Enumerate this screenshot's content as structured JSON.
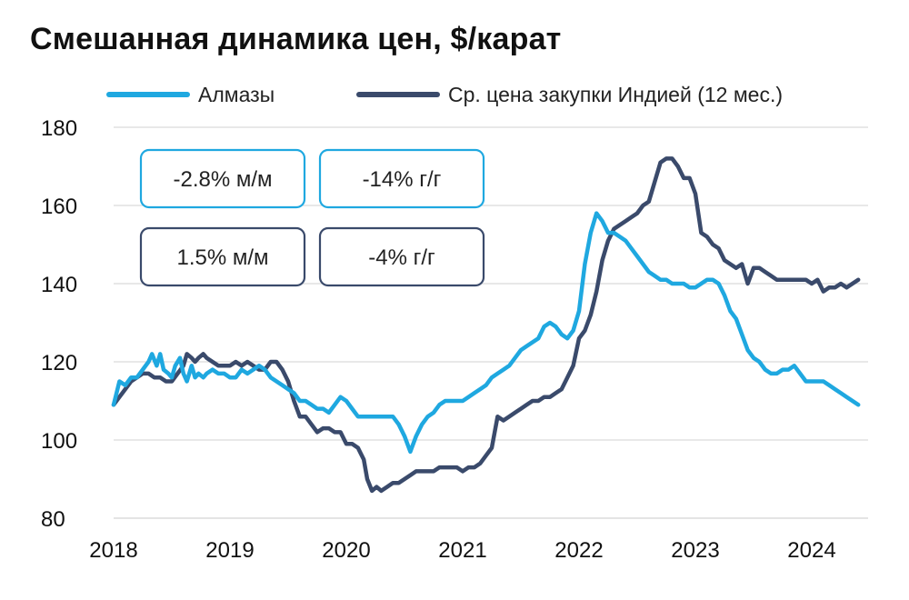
{
  "title": "Смешанная динамика цен, $/карат",
  "chart_data": {
    "type": "line",
    "title": "Смешанная динамика цен, $/карат",
    "xlabel": "",
    "ylabel": "",
    "ylim": [
      80,
      180
    ],
    "yticks": [
      80,
      100,
      120,
      140,
      160,
      180
    ],
    "xlim": [
      2018,
      2024.6
    ],
    "xticks": [
      "2018",
      "2019",
      "2020",
      "2021",
      "2022",
      "2023",
      "2024"
    ],
    "grid": "horizontal",
    "legend_position": "top",
    "series": [
      {
        "name": "Алмазы",
        "color": "#1fa8e0",
        "points": [
          [
            2018.0,
            109
          ],
          [
            2018.05,
            115
          ],
          [
            2018.1,
            114
          ],
          [
            2018.15,
            116
          ],
          [
            2018.2,
            116
          ],
          [
            2018.25,
            118
          ],
          [
            2018.3,
            120
          ],
          [
            2018.33,
            122
          ],
          [
            2018.37,
            119
          ],
          [
            2018.4,
            122
          ],
          [
            2018.43,
            118
          ],
          [
            2018.47,
            117
          ],
          [
            2018.5,
            116
          ],
          [
            2018.53,
            119
          ],
          [
            2018.57,
            121
          ],
          [
            2018.6,
            117
          ],
          [
            2018.63,
            115
          ],
          [
            2018.67,
            119
          ],
          [
            2018.7,
            116
          ],
          [
            2018.73,
            117
          ],
          [
            2018.77,
            116
          ],
          [
            2018.8,
            117
          ],
          [
            2018.85,
            118
          ],
          [
            2018.9,
            117
          ],
          [
            2018.95,
            117
          ],
          [
            2019.0,
            116
          ],
          [
            2019.05,
            116
          ],
          [
            2019.1,
            118
          ],
          [
            2019.15,
            117
          ],
          [
            2019.2,
            118
          ],
          [
            2019.25,
            119
          ],
          [
            2019.3,
            118
          ],
          [
            2019.35,
            116
          ],
          [
            2019.4,
            115
          ],
          [
            2019.45,
            114
          ],
          [
            2019.5,
            113
          ],
          [
            2019.55,
            112
          ],
          [
            2019.6,
            110
          ],
          [
            2019.65,
            110
          ],
          [
            2019.7,
            109
          ],
          [
            2019.75,
            108
          ],
          [
            2019.8,
            108
          ],
          [
            2019.85,
            107
          ],
          [
            2019.9,
            109
          ],
          [
            2019.95,
            111
          ],
          [
            2020.0,
            110
          ],
          [
            2020.05,
            108
          ],
          [
            2020.1,
            106
          ],
          [
            2020.15,
            106
          ],
          [
            2020.2,
            106
          ],
          [
            2020.3,
            106
          ],
          [
            2020.4,
            106
          ],
          [
            2020.45,
            104
          ],
          [
            2020.5,
            101
          ],
          [
            2020.55,
            97
          ],
          [
            2020.6,
            101
          ],
          [
            2020.65,
            104
          ],
          [
            2020.7,
            106
          ],
          [
            2020.75,
            107
          ],
          [
            2020.8,
            109
          ],
          [
            2020.85,
            110
          ],
          [
            2020.9,
            110
          ],
          [
            2020.95,
            110
          ],
          [
            2021.0,
            110
          ],
          [
            2021.05,
            111
          ],
          [
            2021.1,
            112
          ],
          [
            2021.15,
            113
          ],
          [
            2021.2,
            114
          ],
          [
            2021.25,
            116
          ],
          [
            2021.3,
            117
          ],
          [
            2021.35,
            118
          ],
          [
            2021.4,
            119
          ],
          [
            2021.45,
            121
          ],
          [
            2021.5,
            123
          ],
          [
            2021.55,
            124
          ],
          [
            2021.6,
            125
          ],
          [
            2021.65,
            126
          ],
          [
            2021.7,
            129
          ],
          [
            2021.75,
            130
          ],
          [
            2021.8,
            129
          ],
          [
            2021.85,
            127
          ],
          [
            2021.9,
            126
          ],
          [
            2021.95,
            128
          ],
          [
            2022.0,
            133
          ],
          [
            2022.05,
            145
          ],
          [
            2022.1,
            153
          ],
          [
            2022.15,
            158
          ],
          [
            2022.2,
            156
          ],
          [
            2022.25,
            153
          ],
          [
            2022.3,
            153
          ],
          [
            2022.35,
            152
          ],
          [
            2022.4,
            151
          ],
          [
            2022.45,
            149
          ],
          [
            2022.5,
            147
          ],
          [
            2022.55,
            145
          ],
          [
            2022.6,
            143
          ],
          [
            2022.65,
            142
          ],
          [
            2022.7,
            141
          ],
          [
            2022.75,
            141
          ],
          [
            2022.8,
            140
          ],
          [
            2022.85,
            140
          ],
          [
            2022.9,
            140
          ],
          [
            2022.95,
            139
          ],
          [
            2023.0,
            139
          ],
          [
            2023.05,
            140
          ],
          [
            2023.1,
            141
          ],
          [
            2023.15,
            141
          ],
          [
            2023.2,
            140
          ],
          [
            2023.25,
            137
          ],
          [
            2023.3,
            133
          ],
          [
            2023.35,
            131
          ],
          [
            2023.4,
            127
          ],
          [
            2023.45,
            123
          ],
          [
            2023.5,
            121
          ],
          [
            2023.55,
            120
          ],
          [
            2023.6,
            118
          ],
          [
            2023.65,
            117
          ],
          [
            2023.7,
            117
          ],
          [
            2023.75,
            118
          ],
          [
            2023.8,
            118
          ],
          [
            2023.85,
            119
          ],
          [
            2023.9,
            117
          ],
          [
            2023.95,
            115
          ],
          [
            2024.0,
            115
          ],
          [
            2024.05,
            115
          ],
          [
            2024.1,
            115
          ],
          [
            2024.15,
            114
          ],
          [
            2024.2,
            113
          ],
          [
            2024.25,
            112
          ],
          [
            2024.3,
            111
          ],
          [
            2024.35,
            110
          ],
          [
            2024.4,
            109
          ]
        ]
      },
      {
        "name": "Ср. цена закупки Индией (12 мес.)",
        "color": "#3a4a6b",
        "points": [
          [
            2018.0,
            109
          ],
          [
            2018.05,
            111
          ],
          [
            2018.1,
            113
          ],
          [
            2018.15,
            115
          ],
          [
            2018.2,
            116
          ],
          [
            2018.25,
            117
          ],
          [
            2018.3,
            117
          ],
          [
            2018.35,
            116
          ],
          [
            2018.4,
            116
          ],
          [
            2018.45,
            115
          ],
          [
            2018.5,
            115
          ],
          [
            2018.55,
            117
          ],
          [
            2018.6,
            119
          ],
          [
            2018.63,
            122
          ],
          [
            2018.67,
            121
          ],
          [
            2018.7,
            120
          ],
          [
            2018.73,
            121
          ],
          [
            2018.77,
            122
          ],
          [
            2018.8,
            121
          ],
          [
            2018.85,
            120
          ],
          [
            2018.9,
            119
          ],
          [
            2018.95,
            119
          ],
          [
            2019.0,
            119
          ],
          [
            2019.05,
            120
          ],
          [
            2019.1,
            119
          ],
          [
            2019.15,
            120
          ],
          [
            2019.2,
            119
          ],
          [
            2019.25,
            118
          ],
          [
            2019.3,
            118
          ],
          [
            2019.35,
            120
          ],
          [
            2019.4,
            120
          ],
          [
            2019.45,
            118
          ],
          [
            2019.5,
            115
          ],
          [
            2019.55,
            110
          ],
          [
            2019.6,
            106
          ],
          [
            2019.65,
            106
          ],
          [
            2019.7,
            104
          ],
          [
            2019.75,
            102
          ],
          [
            2019.8,
            103
          ],
          [
            2019.85,
            103
          ],
          [
            2019.9,
            102
          ],
          [
            2019.95,
            102
          ],
          [
            2020.0,
            99
          ],
          [
            2020.05,
            99
          ],
          [
            2020.1,
            98
          ],
          [
            2020.15,
            95
          ],
          [
            2020.18,
            90
          ],
          [
            2020.22,
            87
          ],
          [
            2020.26,
            88
          ],
          [
            2020.3,
            87
          ],
          [
            2020.35,
            88
          ],
          [
            2020.4,
            89
          ],
          [
            2020.45,
            89
          ],
          [
            2020.5,
            90
          ],
          [
            2020.55,
            91
          ],
          [
            2020.6,
            92
          ],
          [
            2020.65,
            92
          ],
          [
            2020.7,
            92
          ],
          [
            2020.75,
            92
          ],
          [
            2020.8,
            93
          ],
          [
            2020.85,
            93
          ],
          [
            2020.9,
            93
          ],
          [
            2020.95,
            93
          ],
          [
            2021.0,
            92
          ],
          [
            2021.05,
            93
          ],
          [
            2021.1,
            93
          ],
          [
            2021.15,
            94
          ],
          [
            2021.2,
            96
          ],
          [
            2021.25,
            98
          ],
          [
            2021.3,
            106
          ],
          [
            2021.35,
            105
          ],
          [
            2021.4,
            106
          ],
          [
            2021.45,
            107
          ],
          [
            2021.5,
            108
          ],
          [
            2021.55,
            109
          ],
          [
            2021.6,
            110
          ],
          [
            2021.65,
            110
          ],
          [
            2021.7,
            111
          ],
          [
            2021.75,
            111
          ],
          [
            2021.8,
            112
          ],
          [
            2021.85,
            113
          ],
          [
            2021.9,
            116
          ],
          [
            2021.95,
            119
          ],
          [
            2022.0,
            126
          ],
          [
            2022.05,
            128
          ],
          [
            2022.1,
            132
          ],
          [
            2022.15,
            138
          ],
          [
            2022.2,
            146
          ],
          [
            2022.25,
            151
          ],
          [
            2022.3,
            154
          ],
          [
            2022.35,
            155
          ],
          [
            2022.4,
            156
          ],
          [
            2022.45,
            157
          ],
          [
            2022.5,
            158
          ],
          [
            2022.55,
            160
          ],
          [
            2022.6,
            161
          ],
          [
            2022.65,
            166
          ],
          [
            2022.7,
            171
          ],
          [
            2022.75,
            172
          ],
          [
            2022.8,
            172
          ],
          [
            2022.85,
            170
          ],
          [
            2022.9,
            167
          ],
          [
            2022.95,
            167
          ],
          [
            2023.0,
            163
          ],
          [
            2023.05,
            153
          ],
          [
            2023.1,
            152
          ],
          [
            2023.15,
            150
          ],
          [
            2023.2,
            149
          ],
          [
            2023.25,
            146
          ],
          [
            2023.3,
            145
          ],
          [
            2023.35,
            144
          ],
          [
            2023.4,
            145
          ],
          [
            2023.45,
            140
          ],
          [
            2023.5,
            144
          ],
          [
            2023.55,
            144
          ],
          [
            2023.6,
            143
          ],
          [
            2023.65,
            142
          ],
          [
            2023.7,
            141
          ],
          [
            2023.75,
            141
          ],
          [
            2023.8,
            141
          ],
          [
            2023.85,
            141
          ],
          [
            2023.9,
            141
          ],
          [
            2023.95,
            141
          ],
          [
            2024.0,
            140
          ],
          [
            2024.05,
            141
          ],
          [
            2024.1,
            138
          ],
          [
            2024.15,
            139
          ],
          [
            2024.2,
            139
          ],
          [
            2024.25,
            140
          ],
          [
            2024.3,
            139
          ],
          [
            2024.35,
            140
          ],
          [
            2024.4,
            141
          ]
        ]
      }
    ],
    "annotations": [
      {
        "text": "-2.8% м/м",
        "series": "Алмазы",
        "color": "#1fa8e0"
      },
      {
        "text": "-14% г/г",
        "series": "Алмазы",
        "color": "#1fa8e0"
      },
      {
        "text": "1.5% м/м",
        "series": "Ср. цена закупки Индией (12 мес.)",
        "color": "#3a4a6b"
      },
      {
        "text": "-4% г/г",
        "series": "Ср. цена закупки Индией (12 мес.)",
        "color": "#3a4a6b"
      }
    ]
  }
}
